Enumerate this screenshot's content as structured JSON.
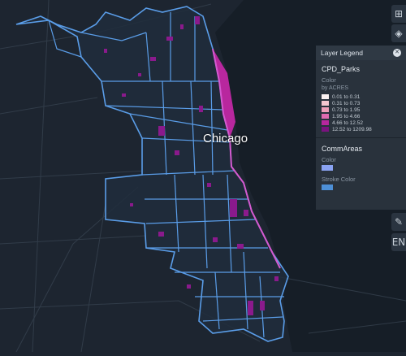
{
  "map": {
    "place_label": "Chicago"
  },
  "legend": {
    "title": "Layer Legend",
    "layers": [
      {
        "name": "CPD_Parks",
        "color_label": "Color",
        "by_label": "by ACRES",
        "ranges": [
          {
            "label": "0.01 to 0.31",
            "color": "#fbf2f2"
          },
          {
            "label": "0.31 to 0.73",
            "color": "#f4c7d0"
          },
          {
            "label": "0.73 to 1.95",
            "color": "#ee9fb9"
          },
          {
            "label": "1.95 to 4.66",
            "color": "#e06bb0"
          },
          {
            "label": "4.66 to 12.52",
            "color": "#b8279e"
          },
          {
            "label": "12.52 to 1209.98",
            "color": "#7a137f"
          }
        ]
      },
      {
        "name": "CommAreas",
        "color_label": "Color",
        "fill_color": "#8aa3f2",
        "stroke_label": "Stroke Color",
        "stroke_color": "#4d8fd6"
      }
    ]
  },
  "colors": {
    "background": "#1d2530",
    "boundary": "#5a9de8",
    "park": "#8a1a8c",
    "water": "#161e27"
  }
}
